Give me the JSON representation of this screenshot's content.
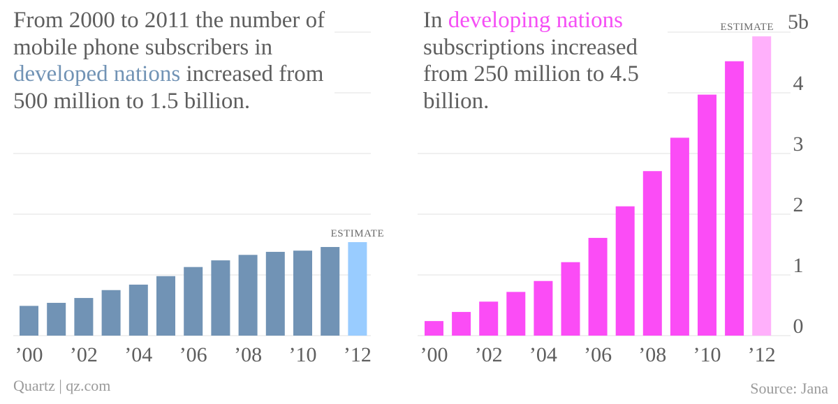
{
  "headlines": {
    "left": {
      "pre": "From 2000 to 2011 the number of mobile phone subscribers in ",
      "highlight": "developed nations",
      "post": " increased from 500 million to 1.5 billion."
    },
    "right": {
      "pre": "In ",
      "highlight": "developing nations",
      "post": " subscriptions increased from 250 million to 4.5 billion."
    }
  },
  "footer": {
    "brand": "Quartz | qz.com",
    "source": "Source: Jana"
  },
  "colors": {
    "developed": "#7193b5",
    "developed_estimate": "#99ccff",
    "developing": "#fb4cf6",
    "developing_estimate": "#ffb0fb",
    "gridline": "#ebebeb",
    "text": "#5e5e5e"
  },
  "chart_data": [
    {
      "type": "bar",
      "title": "From 2000 to 2011 the number of mobile phone subscribers in developed nations increased from 500 million to 1.5 billion.",
      "series_name": "Developed nations",
      "categories": [
        "'00",
        "'01",
        "'02",
        "'03",
        "'04",
        "'05",
        "'06",
        "'07",
        "'08",
        "'09",
        "'10",
        "'11",
        "'12"
      ],
      "x_tick_labels": [
        "’00",
        "’02",
        "’04",
        "’06",
        "’08",
        "’10",
        "’12"
      ],
      "values": [
        0.49,
        0.54,
        0.62,
        0.75,
        0.84,
        0.98,
        1.13,
        1.24,
        1.33,
        1.38,
        1.4,
        1.46,
        1.54
      ],
      "estimate_index": 12,
      "estimate_label": "ESTIMATE",
      "unit": "billions of subscribers",
      "ylim": [
        0,
        5
      ],
      "grid": true,
      "xlabel": "",
      "ylabel": ""
    },
    {
      "type": "bar",
      "title": "In developing nations subscriptions increased from 250 million to 4.5 billion.",
      "series_name": "Developing nations",
      "categories": [
        "'00",
        "'01",
        "'02",
        "'03",
        "'04",
        "'05",
        "'06",
        "'07",
        "'08",
        "'09",
        "'10",
        "'11",
        "'12"
      ],
      "x_tick_labels": [
        "’00",
        "’02",
        "’04",
        "’06",
        "’08",
        "’10",
        "’12"
      ],
      "values": [
        0.24,
        0.39,
        0.56,
        0.72,
        0.9,
        1.21,
        1.61,
        2.13,
        2.71,
        3.26,
        3.97,
        4.52,
        4.93
      ],
      "estimate_index": 12,
      "estimate_label": "ESTIMATE",
      "unit": "billions of subscriptions",
      "y_tick_labels": [
        "0",
        "1",
        "2",
        "3",
        "4",
        "5b"
      ],
      "y_ticks": [
        0,
        1,
        2,
        3,
        4,
        5
      ],
      "ylim": [
        0,
        5
      ],
      "grid": true,
      "legend": "none",
      "xlabel": "",
      "ylabel": ""
    }
  ]
}
